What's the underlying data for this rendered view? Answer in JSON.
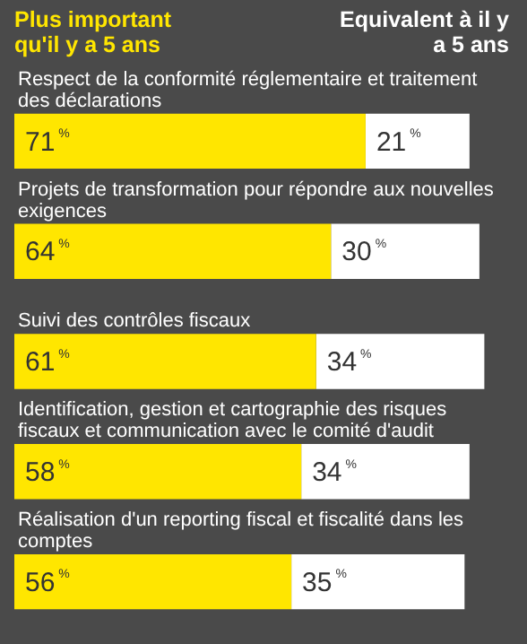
{
  "chart_data": {
    "type": "bar",
    "orientation": "horizontal",
    "stacked": true,
    "categories": [
      "Respect de la conformité réglementaire et traitement des déclarations",
      "Projets de transformation pour répondre aux nouvelles exigences",
      "Suivi des contrôles fiscaux",
      "Identification, gestion et cartographie des risques fiscaux et communication avec le comité d'audit",
      "Réalisation d'un reporting fiscal et fiscalité dans les comptes"
    ],
    "series": [
      {
        "name": "Plus important qu'il y a 5 ans",
        "color": "#ffe600",
        "values": [
          71,
          64,
          61,
          58,
          56
        ],
        "value_labels": [
          "71%",
          "64%",
          "61%",
          "58%",
          "56%"
        ]
      },
      {
        "name": "Equivalent à il y a 5 ans",
        "color": "#ffffff",
        "values": [
          21,
          30,
          34,
          34,
          35
        ],
        "value_labels": [
          "21%",
          "30%",
          "34%",
          "34%",
          "35%"
        ]
      }
    ],
    "tick_labels": false,
    "legend": "top"
  }
}
